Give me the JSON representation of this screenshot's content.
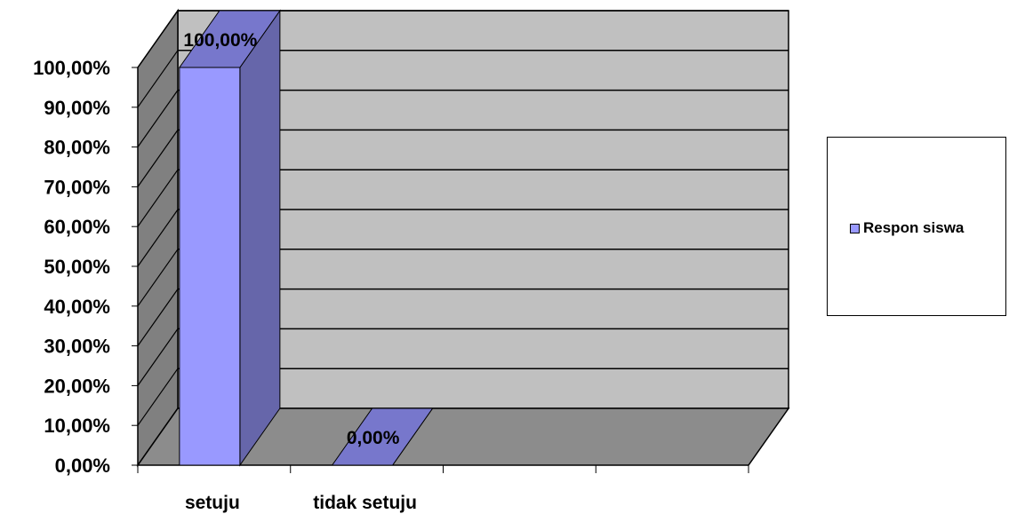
{
  "chart_data": {
    "type": "bar",
    "categories": [
      "setuju",
      "tidak setuju"
    ],
    "series": [
      {
        "name": "Respon siswa",
        "values": [
          1.0,
          0.0
        ],
        "color": "#9999ff",
        "data_labels": [
          "100,00%",
          "0,00%"
        ]
      }
    ],
    "y_ticks": [
      "0,00%",
      "10,00%",
      "20,00%",
      "30,00%",
      "40,00%",
      "50,00%",
      "60,00%",
      "70,00%",
      "80,00%",
      "90,00%",
      "100,00%"
    ],
    "ylim": [
      0,
      1.0
    ],
    "grid": true,
    "three_d": true,
    "legend_position": "right",
    "title": "",
    "xlabel": "",
    "ylabel": "",
    "colors": {
      "bar_front": "#9999ff",
      "bar_side": "#6666aa",
      "bar_top": "#7777cc",
      "back_wall": "#c0c0c0",
      "side_wall": "#808080",
      "floor": "#8c8c8c"
    }
  }
}
